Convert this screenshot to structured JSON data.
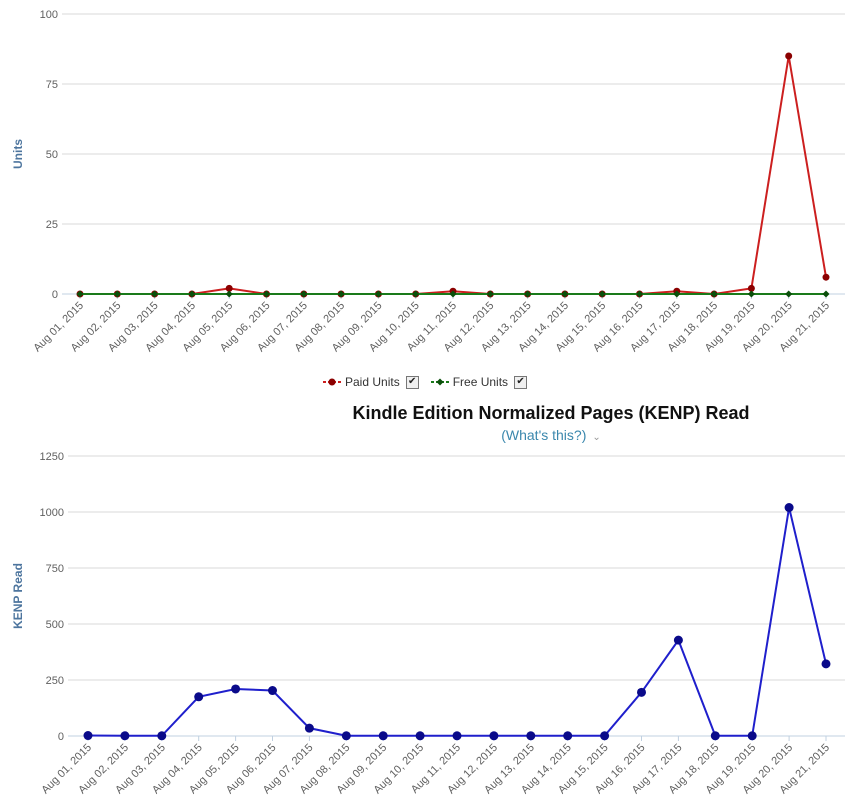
{
  "chart_data": [
    {
      "type": "line",
      "ylabel": "Units",
      "ylim": [
        0,
        100
      ],
      "yticks": [
        "0",
        "25",
        "50",
        "75",
        "100"
      ],
      "categories": [
        "Aug 01, 2015",
        "Aug 02, 2015",
        "Aug 03, 2015",
        "Aug 04, 2015",
        "Aug 05, 2015",
        "Aug 06, 2015",
        "Aug 07, 2015",
        "Aug 08, 2015",
        "Aug 09, 2015",
        "Aug 10, 2015",
        "Aug 11, 2015",
        "Aug 12, 2015",
        "Aug 13, 2015",
        "Aug 14, 2015",
        "Aug 15, 2015",
        "Aug 16, 2015",
        "Aug 17, 2015",
        "Aug 18, 2015",
        "Aug 19, 2015",
        "Aug 20, 2015",
        "Aug 21, 2015"
      ],
      "grid": true,
      "legend": "bottom-center",
      "series": [
        {
          "name": "Paid Units",
          "color": "#cc1f1f",
          "marker_color": "#8b0000",
          "values": [
            0,
            0,
            0,
            0,
            2,
            0,
            0,
            0,
            0,
            0,
            1,
            0,
            0,
            0,
            0,
            0,
            1,
            0,
            2,
            85,
            6
          ]
        },
        {
          "name": "Free Units",
          "color": "#1a7a1a",
          "marker_color": "#0b4f0b",
          "values": [
            0,
            0,
            0,
            0,
            0,
            0,
            0,
            0,
            0,
            0,
            0,
            0,
            0,
            0,
            0,
            0,
            0,
            0,
            0,
            0,
            0
          ]
        }
      ]
    },
    {
      "type": "line",
      "title": "Kindle Edition Normalized Pages (KENP) Read",
      "subtitle": "(What's this?)",
      "ylabel": "KENP Read",
      "ylim": [
        0,
        1250
      ],
      "yticks": [
        "0",
        "250",
        "500",
        "750",
        "1000",
        "1250"
      ],
      "categories": [
        "Aug 01, 2015",
        "Aug 02, 2015",
        "Aug 03, 2015",
        "Aug 04, 2015",
        "Aug 05, 2015",
        "Aug 06, 2015",
        "Aug 07, 2015",
        "Aug 08, 2015",
        "Aug 09, 2015",
        "Aug 10, 2015",
        "Aug 11, 2015",
        "Aug 12, 2015",
        "Aug 13, 2015",
        "Aug 14, 2015",
        "Aug 15, 2015",
        "Aug 16, 2015",
        "Aug 17, 2015",
        "Aug 18, 2015",
        "Aug 19, 2015",
        "Aug 20, 2015",
        "Aug 21, 2015"
      ],
      "grid": true,
      "series": [
        {
          "color": "#1f1fcc",
          "marker_color": "#0a0a8a",
          "values": [
            2,
            1,
            1,
            175,
            210,
            203,
            35,
            1,
            1,
            1,
            1,
            1,
            1,
            1,
            1,
            195,
            428,
            1,
            1,
            1020,
            322
          ]
        }
      ]
    }
  ],
  "legend": {
    "paid_label": "Paid Units",
    "free_label": "Free Units",
    "check_glyph": "✔"
  },
  "kenp": {
    "title": "Kindle Edition Normalized Pages (KENP) Read",
    "whats_this": "(What's this?)",
    "chevron": "⌄"
  }
}
